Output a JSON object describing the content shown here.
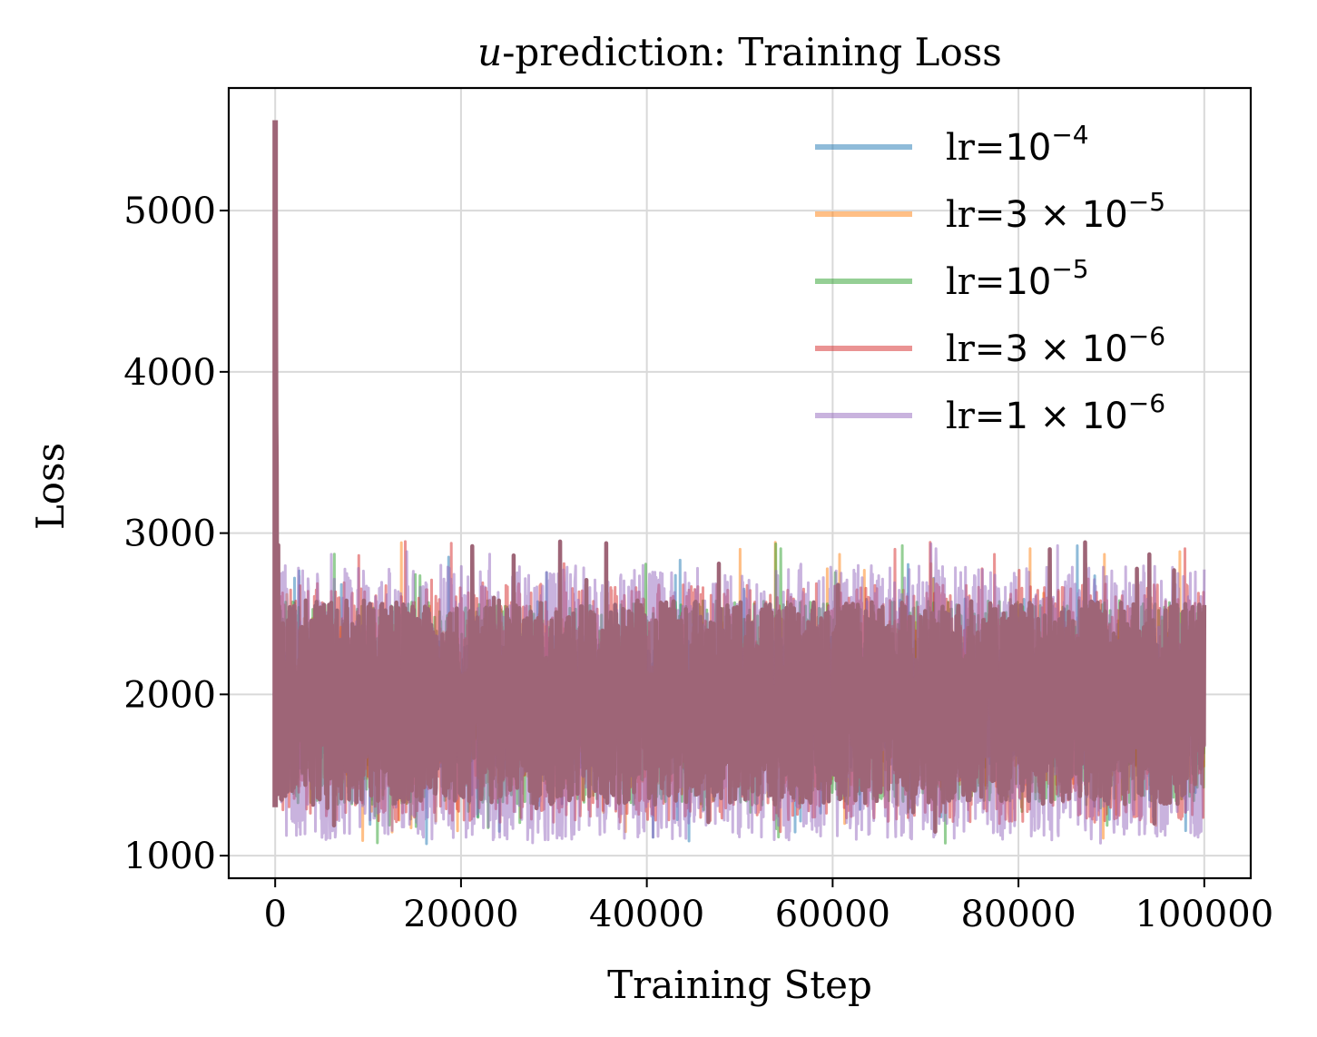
{
  "chart_data": {
    "type": "line",
    "title_italic": "u",
    "title_rest": "-prediction: Training Loss",
    "xlabel": "Training Step",
    "ylabel": "Loss",
    "xlim": [
      -5000,
      105000
    ],
    "ylim": [
      860,
      5760
    ],
    "xticks": [
      0,
      20000,
      40000,
      60000,
      80000,
      100000
    ],
    "xtick_labels": [
      "0",
      "20000",
      "40000",
      "60000",
      "80000",
      "100000"
    ],
    "yticks": [
      1000,
      2000,
      3000,
      4000,
      5000
    ],
    "ytick_labels": [
      "1000",
      "2000",
      "3000",
      "4000",
      "5000"
    ],
    "grid": true,
    "legend_position": "upper-right",
    "spike": {
      "x": 0,
      "y": 5560
    },
    "noise_band": {
      "x_start": 0,
      "x_end": 100000,
      "typical_low": 1400,
      "typical_high": 2500,
      "min": 1070,
      "max": 2950
    },
    "series": [
      {
        "name_prefix": "lr=",
        "name_mant": "",
        "name_exp": "−4",
        "color": "#1f77b4"
      },
      {
        "name_prefix": "lr=",
        "name_mant": "3 × ",
        "name_exp": "−5",
        "color": "#ff7f0e"
      },
      {
        "name_prefix": "lr=",
        "name_mant": "",
        "name_exp": "−5",
        "color": "#2ca02c"
      },
      {
        "name_prefix": "lr=",
        "name_mant": "3 × ",
        "name_exp": "−6",
        "color": "#d62728"
      },
      {
        "name_prefix": "lr=",
        "name_mant": "1 × ",
        "name_exp": "−6",
        "color": "#9467bd"
      }
    ],
    "legend_base": "10",
    "combined_color": "#9e6577"
  }
}
